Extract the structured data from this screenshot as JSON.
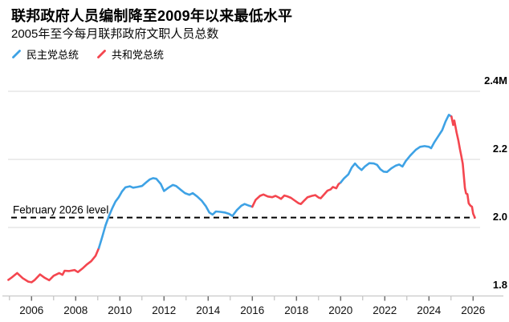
{
  "header": {
    "title": "联邦政府人员编制降至2009年以来最低水平",
    "subtitle": "2005年至今每月联邦政府文职人员总数"
  },
  "legend": {
    "items": [
      {
        "label": "民主党总统",
        "party": "democrat"
      },
      {
        "label": "共和党总统",
        "party": "republican"
      }
    ]
  },
  "colors": {
    "democrat": "#3EA2E5",
    "republican": "#F4464F",
    "grid": "#D9D9D9",
    "axis": "#C9C9C9",
    "tick_major": "#6E6E6E",
    "tick_minor": "#B5B5B5",
    "text": "#000000",
    "annotation_line": "#000000"
  },
  "chart_data": {
    "type": "line",
    "title": "联邦政府人员编制降至2009年以来最低水平",
    "subtitle": "2005年至今每月联邦政府文职人员总数",
    "unit": "M (millions of federal civilian employees)",
    "xlim": [
      2004.9,
      2026.6
    ],
    "ylim": [
      1.8,
      2.45
    ],
    "grid": "horizontal",
    "legend_position": "top-left",
    "x_ticks_labeled": [
      2006,
      2008,
      2010,
      2012,
      2014,
      2016,
      2018,
      2020,
      2022,
      2024,
      2026
    ],
    "x_ticks_minor": [
      2005,
      2007,
      2009,
      2011,
      2013,
      2015,
      2017,
      2019,
      2021,
      2023,
      2025
    ],
    "y_ticks": [
      {
        "label": "2.4M",
        "value": 2.4
      },
      {
        "label": "2.2",
        "value": 2.2
      },
      {
        "label": "2.0",
        "value": 2.0
      },
      {
        "label": "1.8",
        "value": 1.8
      }
    ],
    "annotation": {
      "label": "February 2026 level",
      "value": 2.029
    },
    "series": [
      {
        "name": "共和党总统 2005–2009",
        "party": "republican",
        "points": [
          [
            2004.95,
            1.846
          ],
          [
            2005.1,
            1.853
          ],
          [
            2005.35,
            1.866
          ],
          [
            2005.6,
            1.851
          ],
          [
            2005.85,
            1.841
          ],
          [
            2006.0,
            1.839
          ],
          [
            2006.15,
            1.846
          ],
          [
            2006.38,
            1.862
          ],
          [
            2006.6,
            1.852
          ],
          [
            2006.8,
            1.845
          ],
          [
            2007.0,
            1.858
          ],
          [
            2007.25,
            1.866
          ],
          [
            2007.4,
            1.861
          ],
          [
            2007.5,
            1.873
          ],
          [
            2007.7,
            1.872
          ],
          [
            2007.95,
            1.875
          ],
          [
            2008.1,
            1.869
          ],
          [
            2008.3,
            1.879
          ],
          [
            2008.5,
            1.891
          ],
          [
            2008.7,
            1.901
          ],
          [
            2008.9,
            1.917
          ],
          [
            2009.05,
            1.94
          ]
        ]
      },
      {
        "name": "民主党总统 2009–2016",
        "party": "democrat",
        "points": [
          [
            2009.05,
            1.94
          ],
          [
            2009.2,
            1.972
          ],
          [
            2009.35,
            2.006
          ],
          [
            2009.5,
            2.033
          ],
          [
            2009.65,
            2.056
          ],
          [
            2009.8,
            2.076
          ],
          [
            2009.95,
            2.089
          ],
          [
            2010.1,
            2.106
          ],
          [
            2010.25,
            2.118
          ],
          [
            2010.45,
            2.121
          ],
          [
            2010.6,
            2.117
          ],
          [
            2010.8,
            2.119
          ],
          [
            2011.0,
            2.122
          ],
          [
            2011.2,
            2.133
          ],
          [
            2011.35,
            2.141
          ],
          [
            2011.5,
            2.145
          ],
          [
            2011.65,
            2.143
          ],
          [
            2011.85,
            2.128
          ],
          [
            2012.0,
            2.107
          ],
          [
            2012.2,
            2.117
          ],
          [
            2012.4,
            2.125
          ],
          [
            2012.55,
            2.122
          ],
          [
            2012.75,
            2.111
          ],
          [
            2012.95,
            2.101
          ],
          [
            2013.15,
            2.096
          ],
          [
            2013.3,
            2.101
          ],
          [
            2013.5,
            2.091
          ],
          [
            2013.7,
            2.079
          ],
          [
            2013.9,
            2.062
          ],
          [
            2014.05,
            2.044
          ],
          [
            2014.2,
            2.038
          ],
          [
            2014.35,
            2.047
          ],
          [
            2014.55,
            2.046
          ],
          [
            2014.75,
            2.044
          ],
          [
            2014.95,
            2.04
          ],
          [
            2015.1,
            2.034
          ],
          [
            2015.3,
            2.051
          ],
          [
            2015.5,
            2.064
          ],
          [
            2015.65,
            2.069
          ],
          [
            2015.85,
            2.064
          ],
          [
            2016.0,
            2.061
          ]
        ]
      },
      {
        "name": "共和党总统 2016–2020",
        "party": "republican",
        "points": [
          [
            2016.0,
            2.061
          ],
          [
            2016.15,
            2.081
          ],
          [
            2016.35,
            2.093
          ],
          [
            2016.5,
            2.097
          ],
          [
            2016.7,
            2.091
          ],
          [
            2016.9,
            2.089
          ],
          [
            2017.05,
            2.093
          ],
          [
            2017.2,
            2.088
          ],
          [
            2017.3,
            2.084
          ],
          [
            2017.45,
            2.094
          ],
          [
            2017.6,
            2.091
          ],
          [
            2017.75,
            2.087
          ],
          [
            2017.9,
            2.08
          ],
          [
            2018.1,
            2.071
          ],
          [
            2018.2,
            2.069
          ],
          [
            2018.35,
            2.079
          ],
          [
            2018.5,
            2.089
          ],
          [
            2018.7,
            2.093
          ],
          [
            2018.85,
            2.095
          ],
          [
            2019.0,
            2.088
          ],
          [
            2019.1,
            2.086
          ],
          [
            2019.25,
            2.097
          ],
          [
            2019.4,
            2.108
          ],
          [
            2019.55,
            2.112
          ],
          [
            2019.65,
            2.119
          ],
          [
            2019.8,
            2.115
          ],
          [
            2019.9,
            2.127
          ],
          [
            2020.0,
            2.132
          ]
        ]
      },
      {
        "name": "民主党总统 2020–2025",
        "party": "democrat",
        "points": [
          [
            2020.0,
            2.132
          ],
          [
            2020.15,
            2.144
          ],
          [
            2020.35,
            2.156
          ],
          [
            2020.5,
            2.176
          ],
          [
            2020.65,
            2.188
          ],
          [
            2020.8,
            2.177
          ],
          [
            2020.95,
            2.169
          ],
          [
            2021.1,
            2.179
          ],
          [
            2021.3,
            2.189
          ],
          [
            2021.5,
            2.188
          ],
          [
            2021.65,
            2.184
          ],
          [
            2021.8,
            2.171
          ],
          [
            2021.95,
            2.164
          ],
          [
            2022.1,
            2.163
          ],
          [
            2022.3,
            2.174
          ],
          [
            2022.5,
            2.182
          ],
          [
            2022.65,
            2.185
          ],
          [
            2022.8,
            2.179
          ],
          [
            2022.95,
            2.195
          ],
          [
            2023.15,
            2.211
          ],
          [
            2023.4,
            2.228
          ],
          [
            2023.6,
            2.237
          ],
          [
            2023.8,
            2.239
          ],
          [
            2024.0,
            2.237
          ],
          [
            2024.1,
            2.233
          ],
          [
            2024.25,
            2.251
          ],
          [
            2024.45,
            2.271
          ],
          [
            2024.6,
            2.286
          ],
          [
            2024.75,
            2.311
          ],
          [
            2024.9,
            2.331
          ],
          [
            2025.02,
            2.326
          ]
        ]
      },
      {
        "name": "共和党总统 2025–2026",
        "party": "republican",
        "points": [
          [
            2025.02,
            2.326
          ],
          [
            2025.1,
            2.301
          ],
          [
            2025.15,
            2.314
          ],
          [
            2025.25,
            2.279
          ],
          [
            2025.33,
            2.256
          ],
          [
            2025.4,
            2.231
          ],
          [
            2025.47,
            2.209
          ],
          [
            2025.53,
            2.187
          ],
          [
            2025.58,
            2.153
          ],
          [
            2025.63,
            2.116
          ],
          [
            2025.68,
            2.1
          ],
          [
            2025.74,
            2.098
          ],
          [
            2025.8,
            2.071
          ],
          [
            2025.88,
            2.064
          ],
          [
            2025.95,
            2.061
          ],
          [
            2026.0,
            2.041
          ],
          [
            2026.08,
            2.029
          ]
        ]
      }
    ]
  }
}
